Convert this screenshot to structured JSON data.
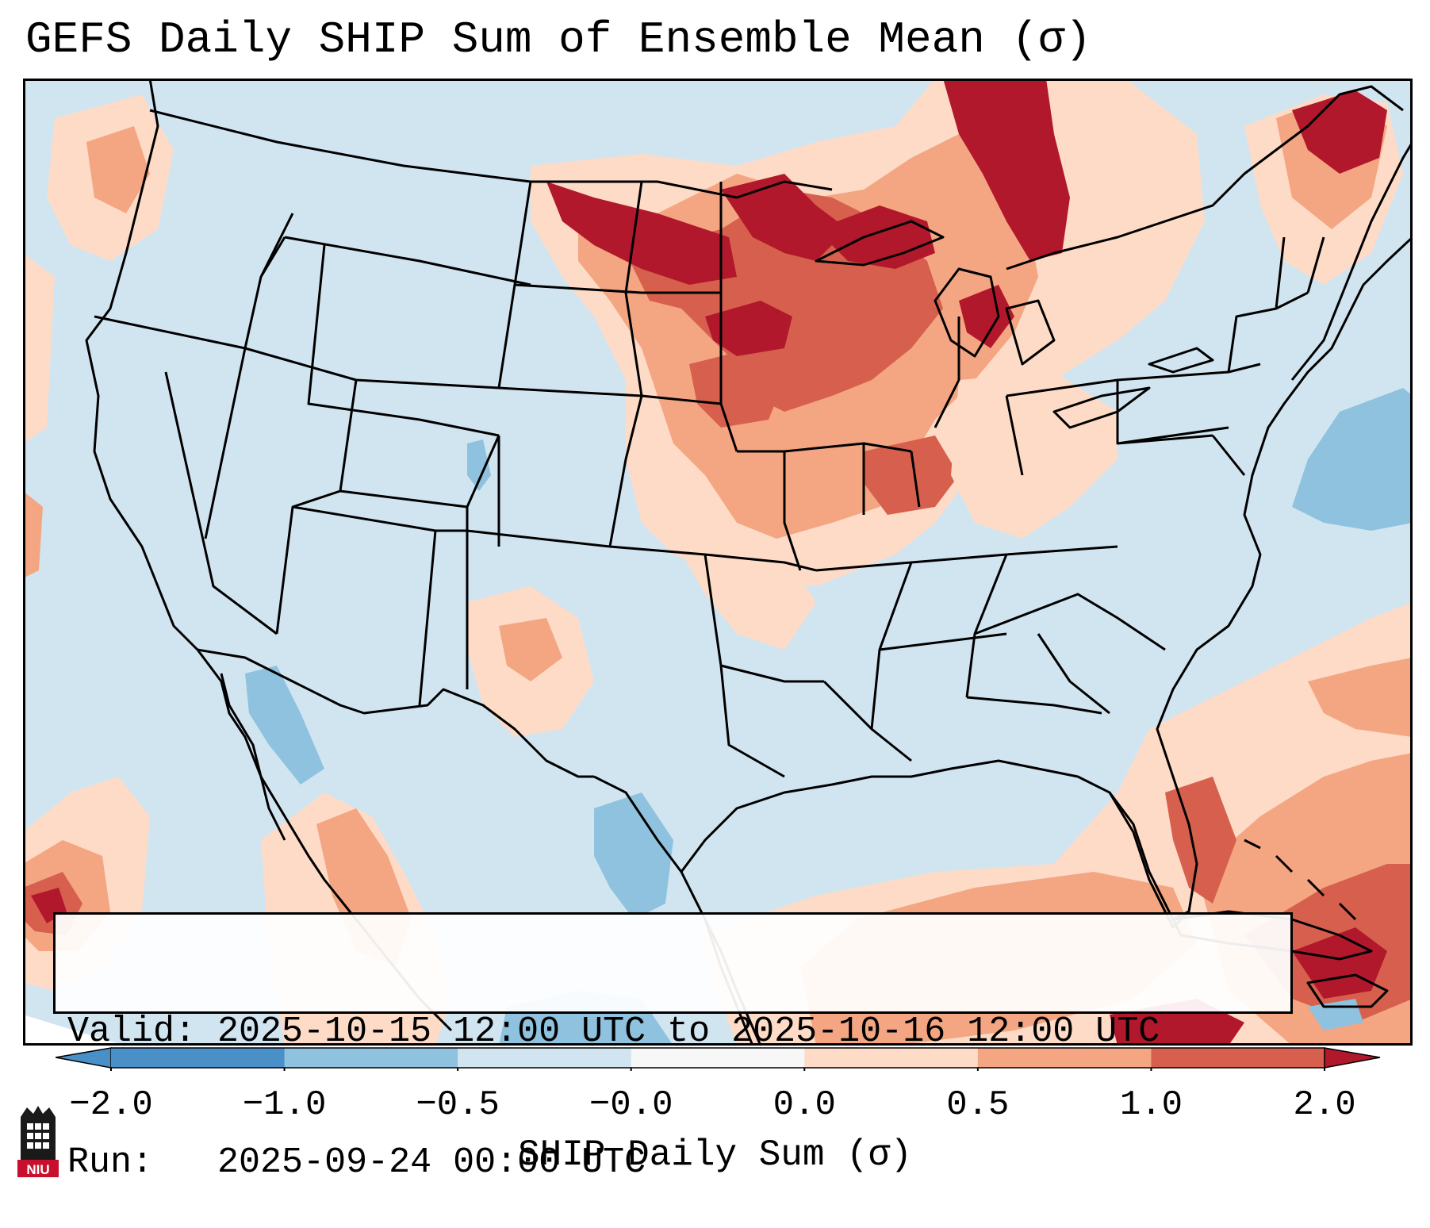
{
  "title": "GEFS Daily SHIP Sum of Ensemble Mean (σ)",
  "info": {
    "valid_label": "Valid:",
    "valid_value": "2025-10-15 12:00 UTC to 2025-10-16 12:00 UTC",
    "run_label": "Run:",
    "run_value": "2025-09-24 00:00 UTC"
  },
  "colorbar": {
    "label": "SHIP Daily Sum (σ)",
    "ticks": [
      "−2.0",
      "−1.0",
      "−0.5",
      "−0.0",
      "0.0",
      "0.5",
      "1.0",
      "2.0"
    ],
    "bins": [
      {
        "color": "#4a90c8",
        "range": "< -2.0"
      },
      {
        "color": "#4a90c8",
        "range": "-2.0 to -1.0"
      },
      {
        "color": "#8fc2de",
        "range": "-1.0 to -0.5"
      },
      {
        "color": "#d1e5f0",
        "range": "-0.5 to -0.0"
      },
      {
        "color": "#f7f7f7",
        "range": "-0.0 to 0.0"
      },
      {
        "color": "#fddbc7",
        "range": "0.0 to 0.5"
      },
      {
        "color": "#f4a582",
        "range": "0.5 to 1.0"
      },
      {
        "color": "#d6604d",
        "range": "1.0 to 2.0"
      },
      {
        "color": "#b2182b",
        "range": "> 2.0"
      }
    ]
  },
  "map": {
    "region": "Contiguous United States",
    "background_color": "#d1e5f0",
    "positive_regions": [
      {
        "name": "Upper Midwest / Great Lakes",
        "intensity": "high"
      },
      {
        "name": "Ontario / Quebec",
        "intensity": "high"
      },
      {
        "name": "Northern Plains",
        "intensity": "high"
      },
      {
        "name": "Iowa / Illinois / Indiana",
        "intensity": "moderate"
      },
      {
        "name": "Western Atlantic / Caribbean",
        "intensity": "moderate"
      },
      {
        "name": "Gulf of Mexico",
        "intensity": "low"
      },
      {
        "name": "New Mexico",
        "intensity": "low"
      }
    ],
    "negative_regions": [
      {
        "name": "Gulf of California",
        "intensity": "low"
      },
      {
        "name": "South Texas / Northern Mexico",
        "intensity": "low"
      },
      {
        "name": "Atlantic east of New England",
        "intensity": "low"
      }
    ]
  },
  "logo": {
    "text": "NIU"
  }
}
